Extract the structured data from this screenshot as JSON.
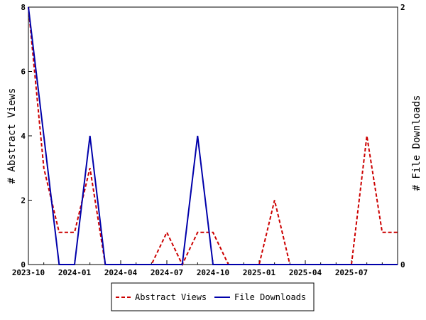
{
  "chart_data": {
    "type": "line",
    "x": [
      "2023-10",
      "2023-11",
      "2023-12",
      "2024-01",
      "2024-02",
      "2024-03",
      "2024-04",
      "2024-05",
      "2024-06",
      "2024-07",
      "2024-08",
      "2024-09",
      "2024-10",
      "2024-11",
      "2024-12",
      "2025-01",
      "2025-02",
      "2025-03",
      "2025-04",
      "2025-05",
      "2025-06",
      "2025-07",
      "2025-08",
      "2025-09",
      "2025-10"
    ],
    "x_tick_labels": [
      "2023-10",
      "2024-01",
      "2024-04",
      "2024-07",
      "2024-10",
      "2025-01",
      "2025-04",
      "2025-07"
    ],
    "series": [
      {
        "name": "Abstract Views",
        "axis": "left",
        "color": "#cc0000",
        "style": "dashed",
        "values": [
          8,
          3,
          1,
          1,
          3,
          0,
          0,
          0,
          0,
          1,
          0,
          1,
          1,
          0,
          0,
          0,
          2,
          0,
          0,
          0,
          0,
          0,
          4,
          1,
          1
        ]
      },
      {
        "name": "File Downloads",
        "axis": "right",
        "color": "#0000aa",
        "style": "solid",
        "values": [
          2,
          1,
          0,
          0,
          1,
          0,
          0,
          0,
          0,
          0,
          0,
          1,
          0,
          0,
          0,
          0,
          0,
          0,
          0,
          0,
          0,
          0,
          0,
          0,
          0
        ]
      }
    ],
    "ylabel": "# Abstract Views",
    "ylabel_right": "# File Downloads",
    "ylim": [
      0,
      8
    ],
    "yticks": [
      0,
      2,
      4,
      6,
      8
    ],
    "ylim_right": [
      0,
      2
    ],
    "yticks_right": [
      0,
      2
    ],
    "grid": false,
    "legend_position": "bottom-center"
  }
}
